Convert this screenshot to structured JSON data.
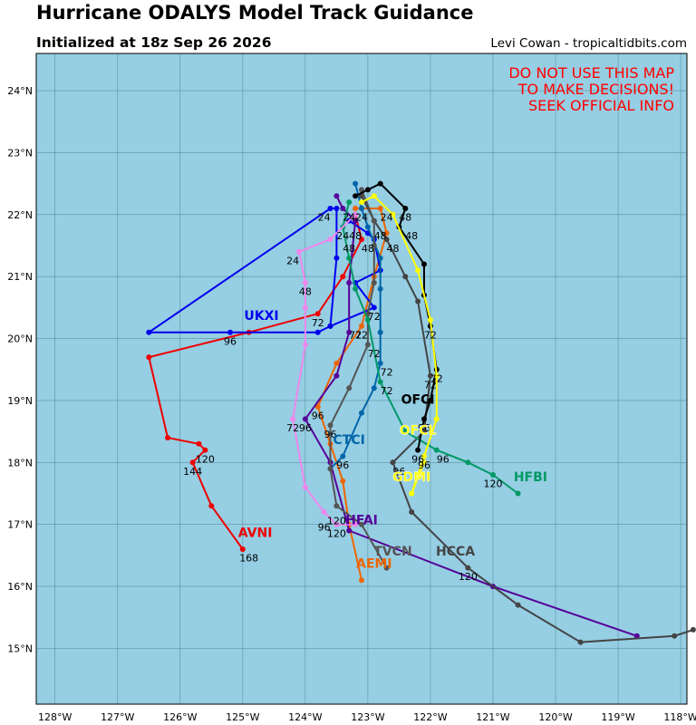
{
  "header": {
    "title": "Hurricane ODALYS Model Track Guidance",
    "subtitle": "Initialized at 18z Sep 26 2026",
    "credit": "Levi Cowan - tropicaltidbits.com"
  },
  "warning": [
    "DO NOT USE THIS MAP",
    "TO MAKE DECISIONS!",
    "SEEK OFFICIAL INFO"
  ],
  "colors": {
    "ocean": "#96cee3",
    "warning": "#ff0000"
  },
  "map": {
    "lon_range": [
      -128.3,
      -117.9
    ],
    "lat_range": [
      14.1,
      24.6
    ],
    "lon_ticks": [
      -128,
      -127,
      -126,
      -125,
      -124,
      -123,
      -122,
      -121,
      -120,
      -119,
      -118
    ],
    "lat_ticks": [
      15,
      16,
      17,
      18,
      19,
      20,
      21,
      22,
      23,
      24
    ],
    "lon_labels": [
      "128°W",
      "127°W",
      "126°W",
      "125°W",
      "124°W",
      "123°W",
      "122°W",
      "121°W",
      "120°W",
      "119°W",
      "118°W"
    ],
    "lat_labels": [
      "15°N",
      "16°N",
      "17°N",
      "18°N",
      "19°N",
      "20°N",
      "21°N",
      "22°N",
      "23°N",
      "24°N"
    ],
    "grid": true
  },
  "tracks": [
    {
      "name": "AVNI",
      "color": "#ee0000",
      "points": [
        [
          -123.2,
          22.0
        ],
        [
          -123.1,
          21.6
        ],
        [
          -123.4,
          21.0
        ],
        [
          -123.8,
          20.4
        ],
        [
          -124.9,
          20.1
        ],
        [
          -126.5,
          19.7
        ],
        [
          -126.2,
          18.4
        ],
        [
          -125.7,
          18.3
        ],
        [
          -125.6,
          18.2
        ],
        [
          -125.8,
          18.0
        ],
        [
          -125.5,
          17.3
        ],
        [
          -125.0,
          16.6
        ]
      ],
      "label": {
        "lon": -124.8,
        "lat": 16.8,
        "text": "AVNI"
      },
      "hours": [
        {
          "lon": -123.3,
          "lat": 21.4,
          "t": "48"
        },
        {
          "lon": -125.6,
          "lat": 18.0,
          "t": "120"
        },
        {
          "lon": -125.8,
          "lat": 17.8,
          "t": "144"
        },
        {
          "lon": -124.9,
          "lat": 16.4,
          "t": "168"
        }
      ]
    },
    {
      "name": "AEMI",
      "color": "#ee6600",
      "points": [
        [
          -123.2,
          22.1
        ],
        [
          -123.1,
          22.1
        ],
        [
          -122.8,
          22.1
        ],
        [
          -122.7,
          21.7
        ],
        [
          -122.9,
          21.0
        ],
        [
          -123.1,
          20.2
        ],
        [
          -123.5,
          19.6
        ],
        [
          -123.8,
          18.9
        ],
        [
          -123.6,
          18.3
        ],
        [
          -123.4,
          17.7
        ],
        [
          -123.3,
          17.0
        ],
        [
          -123.1,
          16.1
        ]
      ],
      "label": {
        "lon": -122.9,
        "lat": 16.3,
        "text": "AEMI"
      },
      "hours": [
        {
          "lon": -122.7,
          "lat": 21.9,
          "t": "24"
        }
      ]
    },
    {
      "name": "UKXI",
      "color": "#0000ee",
      "points": [
        [
          -123.3,
          21.9
        ],
        [
          -123.0,
          21.7
        ],
        [
          -122.9,
          21.6
        ],
        [
          -122.8,
          21.1
        ],
        [
          -123.2,
          20.9
        ],
        [
          -122.9,
          20.5
        ],
        [
          -123.6,
          20.2
        ],
        [
          -123.8,
          20.1
        ],
        [
          -125.2,
          20.1
        ],
        [
          -126.5,
          20.1
        ],
        [
          -123.6,
          22.1
        ],
        [
          -123.5,
          22.1
        ],
        [
          -123.5,
          21.3
        ],
        [
          -123.6,
          20.2
        ]
      ],
      "label": {
        "lon": -124.7,
        "lat": 20.3,
        "text": "UKXI"
      },
      "hours": [
        {
          "lon": -125.2,
          "lat": 19.9,
          "t": "96"
        },
        {
          "lon": -123.7,
          "lat": 21.9,
          "t": "24"
        }
      ]
    },
    {
      "name": "CTCI",
      "color": "#0066aa",
      "points": [
        [
          -123.2,
          22.5
        ],
        [
          -123.1,
          22.1
        ],
        [
          -123.0,
          21.8
        ],
        [
          -122.8,
          21.3
        ],
        [
          -122.8,
          20.8
        ],
        [
          -122.8,
          20.1
        ],
        [
          -122.8,
          19.6
        ],
        [
          -122.9,
          19.2
        ],
        [
          -123.1,
          18.8
        ],
        [
          -123.4,
          18.1
        ],
        [
          -123.6,
          17.9
        ]
      ],
      "label": {
        "lon": -123.3,
        "lat": 18.3,
        "text": "CTCI"
      },
      "hours": []
    },
    {
      "name": "HFAI",
      "color": "#550099",
      "points": [
        [
          -123.5,
          22.3
        ],
        [
          -123.4,
          22.1
        ],
        [
          -123.2,
          21.9
        ],
        [
          -123.3,
          20.9
        ],
        [
          -123.3,
          20.1
        ],
        [
          -123.5,
          19.4
        ],
        [
          -124.0,
          18.7
        ],
        [
          -123.6,
          18.0
        ],
        [
          -123.3,
          16.9
        ],
        [
          -121.0,
          16.0
        ],
        [
          -118.7,
          15.2
        ]
      ],
      "label": {
        "lon": -123.1,
        "lat": 17.0,
        "text": "HFAI"
      },
      "hours": [
        {
          "lon": -123.2,
          "lat": 20.0,
          "t": "72"
        },
        {
          "lon": -123.5,
          "lat": 16.8,
          "t": "120"
        }
      ]
    },
    {
      "name": "HCCA",
      "color": "#444444",
      "points": [
        [
          -123.1,
          22.3
        ],
        [
          -122.9,
          21.9
        ],
        [
          -122.7,
          21.6
        ],
        [
          -122.4,
          21.0
        ],
        [
          -122.2,
          20.6
        ],
        [
          -122.0,
          19.4
        ],
        [
          -122.1,
          18.5
        ],
        [
          -122.6,
          18.0
        ],
        [
          -122.3,
          17.2
        ],
        [
          -121.4,
          16.3
        ],
        [
          -120.6,
          15.7
        ],
        [
          -119.6,
          15.1
        ],
        [
          -118.1,
          15.2
        ],
        [
          -117.8,
          15.3
        ]
      ],
      "label": {
        "lon": -121.6,
        "lat": 16.5,
        "text": "HCCA"
      },
      "hours": [
        {
          "lon": -121.4,
          "lat": 16.1,
          "t": "120"
        }
      ]
    },
    {
      "name": "TVCN",
      "color": "#555555",
      "points": [
        [
          -123.1,
          22.4
        ],
        [
          -122.9,
          21.9
        ],
        [
          -122.9,
          21.5
        ],
        [
          -122.9,
          20.9
        ],
        [
          -123.0,
          20.4
        ],
        [
          -123.0,
          19.9
        ],
        [
          -123.3,
          19.2
        ],
        [
          -123.6,
          18.6
        ],
        [
          -123.6,
          17.9
        ],
        [
          -123.5,
          17.3
        ],
        [
          -123.1,
          17.0
        ],
        [
          -122.7,
          16.3
        ]
      ],
      "label": {
        "lon": -122.6,
        "lat": 16.5,
        "text": "TVCN"
      },
      "hours": []
    },
    {
      "name": "HFBI",
      "color": "#009966",
      "points": [
        [
          -123.3,
          22.2
        ],
        [
          -123.4,
          21.8
        ],
        [
          -123.3,
          21.3
        ],
        [
          -123.2,
          20.8
        ],
        [
          -123.0,
          20.3
        ],
        [
          -122.8,
          19.3
        ],
        [
          -122.4,
          18.5
        ],
        [
          -121.9,
          18.2
        ],
        [
          -121.4,
          18.0
        ],
        [
          -121.0,
          17.8
        ],
        [
          -120.6,
          17.5
        ]
      ],
      "label": {
        "lon": -120.4,
        "lat": 17.7,
        "text": "HFBI"
      },
      "hours": [
        {
          "lon": -121.0,
          "lat": 17.6,
          "t": "120"
        }
      ]
    },
    {
      "name": "OFCI",
      "color": "#000000",
      "points": [
        [
          -123.2,
          22.3
        ],
        [
          -123.0,
          22.4
        ],
        [
          -122.8,
          22.5
        ],
        [
          -122.4,
          22.1
        ],
        [
          -122.5,
          21.8
        ],
        [
          -122.1,
          21.2
        ],
        [
          -122.1,
          20.7
        ],
        [
          -122.0,
          20.2
        ],
        [
          -121.9,
          19.5
        ],
        [
          -122.0,
          19.0
        ],
        [
          -122.1,
          18.7
        ],
        [
          -122.2,
          18.2
        ]
      ],
      "label": {
        "lon": -122.2,
        "lat": 18.95,
        "text": "OFCI"
      },
      "hours": [
        {
          "lon": -122.4,
          "lat": 21.9,
          "t": "48"
        },
        {
          "lon": -122.0,
          "lat": 20.0,
          "t": "72"
        }
      ]
    },
    {
      "name": "OFCL",
      "color": "#ffff00",
      "points": [
        [
          -123.1,
          22.2
        ],
        [
          -122.9,
          22.3
        ],
        [
          -122.6,
          22.0
        ],
        [
          -122.2,
          21.1
        ],
        [
          -122.0,
          20.3
        ],
        [
          -121.9,
          19.4
        ],
        [
          -121.9,
          18.7
        ],
        [
          -122.1,
          18.1
        ],
        [
          -122.3,
          17.5
        ]
      ],
      "label": {
        "lon": -122.2,
        "lat": 18.45,
        "text": "OFCL"
      },
      "hours": []
    },
    {
      "name": "GDMI",
      "color": "#ffff00",
      "points": [
        [
          -122.1,
          18.0
        ],
        [
          -122.3,
          17.5
        ]
      ],
      "label": {
        "lon": -122.3,
        "lat": 17.7,
        "text": "GDMI"
      },
      "hours": []
    },
    {
      "name": "TABM",
      "color": "#ee88ee",
      "points": [
        [
          -123.2,
          22.0
        ],
        [
          -123.6,
          21.6
        ],
        [
          -124.1,
          21.4
        ],
        [
          -124.0,
          20.9
        ],
        [
          -124.0,
          20.5
        ],
        [
          -124.0,
          19.9
        ],
        [
          -124.2,
          18.7
        ],
        [
          -124.0,
          17.6
        ],
        [
          -123.7,
          17.2
        ],
        [
          -123.5,
          17.0
        ],
        [
          -123.2,
          17.0
        ]
      ],
      "label": {
        "lon": -123.6,
        "lat": 16.95,
        "text": ""
      },
      "hours": [
        {
          "lon": -124.2,
          "lat": 21.2,
          "t": "24"
        },
        {
          "lon": -124.0,
          "lat": 20.7,
          "t": "48"
        },
        {
          "lon": -124.2,
          "lat": 18.5,
          "t": "72"
        },
        {
          "lon": -124.0,
          "lat": 18.5,
          "t": "96"
        },
        {
          "lon": -123.7,
          "lat": 16.9,
          "t": "96"
        }
      ]
    }
  ],
  "extra_hour_labels": [
    {
      "lon": -123.3,
      "lat": 21.9,
      "t": "24",
      "color": "#000000"
    },
    {
      "lon": -123.1,
      "lat": 21.9,
      "t": "24",
      "color": "#000000"
    },
    {
      "lon": -123.4,
      "lat": 21.6,
      "t": "24",
      "color": "#000000"
    },
    {
      "lon": -123.2,
      "lat": 21.6,
      "t": "48",
      "color": "#000000"
    },
    {
      "lon": -122.8,
      "lat": 21.6,
      "t": "48",
      "color": "#000000"
    },
    {
      "lon": -123.0,
      "lat": 21.4,
      "t": "48",
      "color": "#000000"
    },
    {
      "lon": -122.6,
      "lat": 21.4,
      "t": "48",
      "color": "#000000"
    },
    {
      "lon": -122.3,
      "lat": 21.6,
      "t": "48",
      "color": "#000000"
    },
    {
      "lon": -123.8,
      "lat": 20.2,
      "t": "72",
      "color": "#000000"
    },
    {
      "lon": -122.9,
      "lat": 20.3,
      "t": "72",
      "color": "#000000"
    },
    {
      "lon": -123.1,
      "lat": 20.0,
      "t": "72",
      "color": "#000000"
    },
    {
      "lon": -122.9,
      "lat": 19.7,
      "t": "72",
      "color": "#000000"
    },
    {
      "lon": -122.7,
      "lat": 19.4,
      "t": "72",
      "color": "#000000"
    },
    {
      "lon": -122.7,
      "lat": 19.1,
      "t": "72",
      "color": "#000000"
    },
    {
      "lon": -121.9,
      "lat": 19.3,
      "t": "72",
      "color": "#000000"
    },
    {
      "lon": -122.0,
      "lat": 19.2,
      "t": "72",
      "color": "#000000"
    },
    {
      "lon": -123.8,
      "lat": 18.7,
      "t": "96",
      "color": "#000000"
    },
    {
      "lon": -123.6,
      "lat": 18.4,
      "t": "96",
      "color": "#000000"
    },
    {
      "lon": -123.4,
      "lat": 17.9,
      "t": "96",
      "color": "#000000"
    },
    {
      "lon": -122.1,
      "lat": 18.5,
      "t": "96",
      "color": "#000000"
    },
    {
      "lon": -122.2,
      "lat": 18.0,
      "t": "96",
      "color": "#000000"
    },
    {
      "lon": -122.1,
      "lat": 17.9,
      "t": "96",
      "color": "#000000"
    },
    {
      "lon": -121.8,
      "lat": 18.0,
      "t": "96",
      "color": "#000000"
    },
    {
      "lon": -122.5,
      "lat": 17.8,
      "t": "96",
      "color": "#000000"
    },
    {
      "lon": -123.5,
      "lat": 17.0,
      "t": "120",
      "color": "#000000"
    }
  ]
}
